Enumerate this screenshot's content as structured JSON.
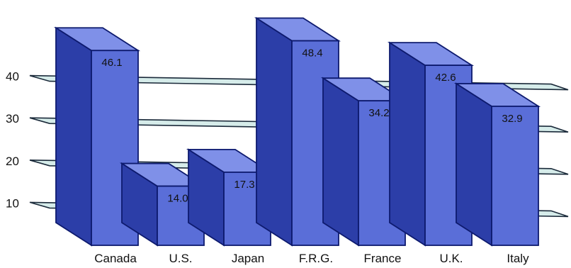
{
  "chart_data": {
    "type": "bar",
    "categories": [
      "Canada",
      "U.S.",
      "Japan",
      "F.R.G.",
      "France",
      "U.K.",
      "Italy"
    ],
    "values": [
      46.1,
      14.0,
      17.3,
      48.4,
      34.2,
      42.6,
      32.9
    ],
    "value_labels": [
      "46.1",
      "14.0",
      "17.3",
      "48.4",
      "34.2",
      "42.6",
      "32.9"
    ],
    "y_ticks": [
      10,
      20,
      30,
      40
    ],
    "ylim": [
      0,
      50
    ],
    "grid": true,
    "legend": "none",
    "colors": {
      "bar_front": "#5a6ed8",
      "bar_top": "#7f90e8",
      "bar_side": "#2c3ea8",
      "bar_edge": "#0d1a6e",
      "grid_fill": "#d6ecea",
      "grid_edge": "#1b2a3a"
    }
  }
}
